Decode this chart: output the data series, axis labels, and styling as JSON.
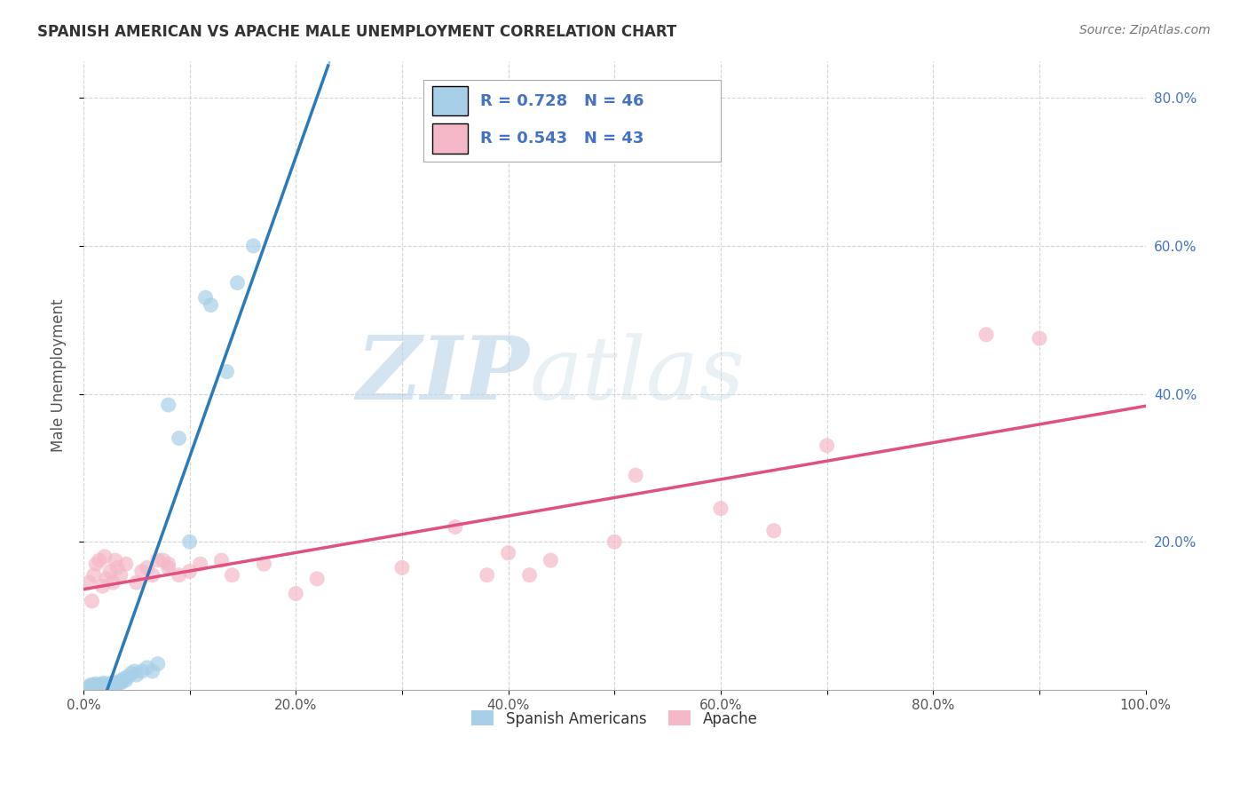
{
  "title": "SPANISH AMERICAN VS APACHE MALE UNEMPLOYMENT CORRELATION CHART",
  "source": "Source: ZipAtlas.com",
  "ylabel": "Male Unemployment",
  "watermark_zip": "ZIP",
  "watermark_atlas": "atlas",
  "legend_r1": "R = 0.728",
  "legend_n1": "N = 46",
  "legend_r2": "R = 0.543",
  "legend_n2": "N = 43",
  "legend_label1": "Spanish Americans",
  "legend_label2": "Apache",
  "color_sa": "#a8cfe8",
  "color_ap": "#f4b8c8",
  "color_line_sa": "#2b7bba",
  "color_line_ap": "#e05080",
  "xlim": [
    0.0,
    1.0
  ],
  "ylim": [
    0.0,
    0.85
  ],
  "xtick_labels": [
    "0.0%",
    "",
    "20.0%",
    "",
    "40.0%",
    "",
    "60.0%",
    "",
    "80.0%",
    "",
    "100.0%"
  ],
  "xtick_vals": [
    0.0,
    0.1,
    0.2,
    0.3,
    0.4,
    0.5,
    0.6,
    0.7,
    0.8,
    0.9,
    1.0
  ],
  "ytick_labels": [
    "20.0%",
    "40.0%",
    "60.0%",
    "80.0%"
  ],
  "ytick_vals": [
    0.2,
    0.4,
    0.6,
    0.8
  ],
  "background_color": "#ffffff",
  "grid_color": "#cccccc",
  "sa_x": [
    0.005,
    0.007,
    0.008,
    0.01,
    0.01,
    0.012,
    0.012,
    0.013,
    0.015,
    0.015,
    0.016,
    0.017,
    0.018,
    0.019,
    0.02,
    0.02,
    0.021,
    0.022,
    0.023,
    0.024,
    0.025,
    0.026,
    0.028,
    0.03,
    0.03,
    0.032,
    0.035,
    0.036,
    0.038,
    0.04,
    0.042,
    0.045,
    0.048,
    0.05,
    0.055,
    0.06,
    0.065,
    0.07,
    0.08,
    0.09,
    0.1,
    0.115,
    0.12,
    0.135,
    0.145,
    0.16
  ],
  "sa_y": [
    0.005,
    0.003,
    0.007,
    0.004,
    0.006,
    0.003,
    0.008,
    0.005,
    0.004,
    0.006,
    0.005,
    0.007,
    0.003,
    0.009,
    0.004,
    0.006,
    0.005,
    0.007,
    0.004,
    0.006,
    0.008,
    0.005,
    0.01,
    0.006,
    0.009,
    0.007,
    0.012,
    0.01,
    0.015,
    0.013,
    0.018,
    0.022,
    0.025,
    0.02,
    0.025,
    0.03,
    0.025,
    0.035,
    0.385,
    0.34,
    0.2,
    0.53,
    0.52,
    0.43,
    0.55,
    0.6
  ],
  "ap_x": [
    0.005,
    0.008,
    0.01,
    0.012,
    0.015,
    0.018,
    0.02,
    0.022,
    0.025,
    0.028,
    0.03,
    0.032,
    0.035,
    0.04,
    0.05,
    0.055,
    0.06,
    0.065,
    0.07,
    0.075,
    0.08,
    0.08,
    0.09,
    0.1,
    0.11,
    0.13,
    0.14,
    0.17,
    0.2,
    0.22,
    0.3,
    0.35,
    0.38,
    0.4,
    0.42,
    0.44,
    0.5,
    0.52,
    0.6,
    0.65,
    0.7,
    0.85,
    0.9
  ],
  "ap_y": [
    0.145,
    0.12,
    0.155,
    0.17,
    0.175,
    0.14,
    0.18,
    0.15,
    0.16,
    0.145,
    0.175,
    0.165,
    0.155,
    0.17,
    0.145,
    0.16,
    0.165,
    0.155,
    0.175,
    0.175,
    0.17,
    0.165,
    0.155,
    0.16,
    0.17,
    0.175,
    0.155,
    0.17,
    0.13,
    0.15,
    0.165,
    0.22,
    0.155,
    0.185,
    0.155,
    0.175,
    0.2,
    0.29,
    0.245,
    0.215,
    0.33,
    0.48,
    0.475
  ]
}
